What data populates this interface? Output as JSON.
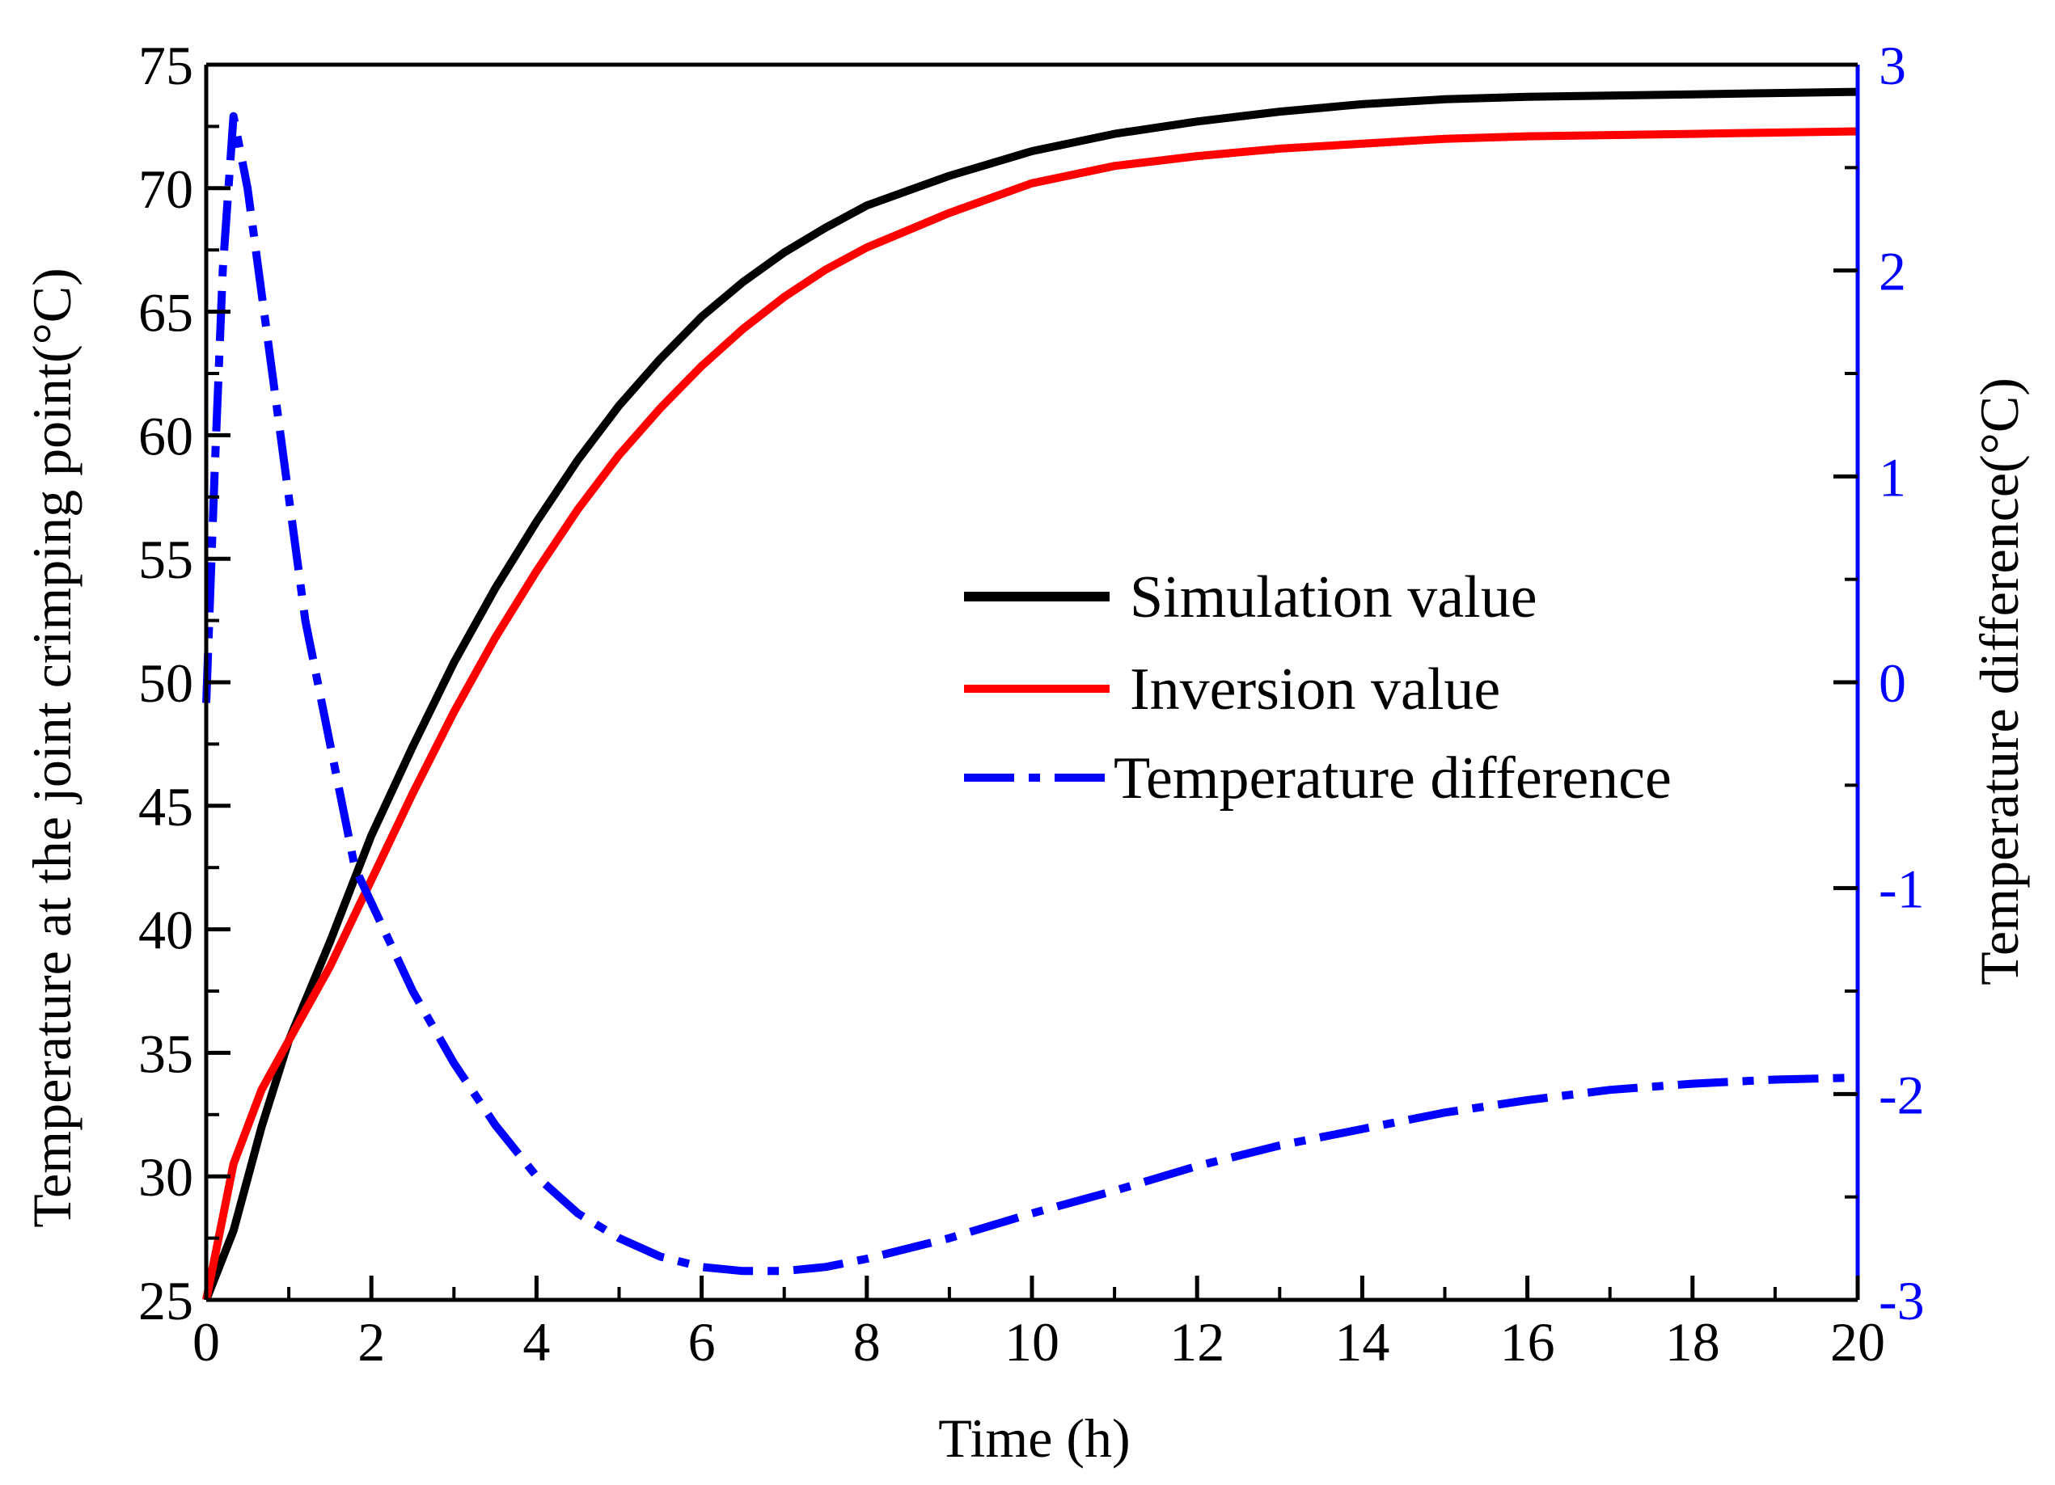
{
  "colors": {
    "simulation": "#000000",
    "inversion": "#ff0000",
    "difference": "#0000ff",
    "axis": "#000000"
  },
  "chart_data": {
    "type": "line",
    "xlabel": "Time (h)",
    "ylabel": "Temperature at the joint crimping point(°C)",
    "y2label": "Temperature difference(°C)",
    "xlim": [
      0,
      20
    ],
    "ylim": [
      25,
      75
    ],
    "y2lim": [
      -3,
      3
    ],
    "xticks": [
      "0",
      "2",
      "4",
      "6",
      "8",
      "10",
      "12",
      "14",
      "16",
      "18",
      "20"
    ],
    "yticks": [
      "25",
      "30",
      "35",
      "40",
      "45",
      "50",
      "55",
      "60",
      "65",
      "70",
      "75"
    ],
    "y2ticks": [
      "-3",
      "-2",
      "-1",
      "0",
      "1",
      "2",
      "3"
    ],
    "grid": false,
    "legend_position": "center-right",
    "series": [
      {
        "name": "Simulation value",
        "axis": "left",
        "style": "solid",
        "x": [
          0,
          0.33,
          0.67,
          1,
          1.5,
          2,
          2.5,
          3,
          3.5,
          4,
          4.5,
          5,
          5.5,
          6,
          6.5,
          7,
          7.5,
          8,
          9,
          10,
          11,
          12,
          13,
          14,
          15,
          16,
          17,
          18,
          19,
          20
        ],
        "y": [
          25,
          27.8,
          32,
          35.5,
          39.5,
          43.8,
          47.4,
          50.8,
          53.8,
          56.5,
          59,
          61.2,
          63.1,
          64.8,
          66.2,
          67.4,
          68.4,
          69.3,
          70.5,
          71.5,
          72.2,
          72.7,
          73.1,
          73.4,
          73.6,
          73.7,
          73.75,
          73.8,
          73.85,
          73.9
        ]
      },
      {
        "name": "Inversion value",
        "axis": "left",
        "style": "solid",
        "x": [
          0,
          0.33,
          0.67,
          1,
          1.5,
          2,
          2.5,
          3,
          3.5,
          4,
          4.5,
          5,
          5.5,
          6,
          6.5,
          7,
          7.5,
          8,
          9,
          10,
          11,
          12,
          13,
          14,
          15,
          16,
          17,
          18,
          19,
          20
        ],
        "y": [
          25,
          30.5,
          33.5,
          35.5,
          38.5,
          42,
          45.5,
          48.8,
          51.8,
          54.5,
          57,
          59.2,
          61.1,
          62.8,
          64.3,
          65.6,
          66.7,
          67.6,
          69.0,
          70.2,
          70.9,
          71.3,
          71.6,
          71.8,
          72.0,
          72.1,
          72.15,
          72.2,
          72.25,
          72.3
        ]
      },
      {
        "name": "Temperature difference",
        "axis": "right",
        "style": "dash-dot",
        "x": [
          0,
          0.1,
          0.2,
          0.33,
          0.5,
          0.8,
          1.2,
          1.8,
          2.5,
          3,
          3.5,
          4,
          4.5,
          5,
          5.5,
          6,
          6.5,
          7,
          7.5,
          8,
          9,
          10,
          11,
          12,
          13,
          14,
          15,
          16,
          17,
          18,
          19,
          20
        ],
        "y": [
          -0.1,
          1.0,
          2.0,
          2.75,
          2.4,
          1.5,
          0.3,
          -0.9,
          -1.5,
          -1.85,
          -2.15,
          -2.4,
          -2.58,
          -2.7,
          -2.79,
          -2.84,
          -2.86,
          -2.86,
          -2.84,
          -2.8,
          -2.7,
          -2.58,
          -2.47,
          -2.35,
          -2.25,
          -2.17,
          -2.09,
          -2.03,
          -1.98,
          -1.95,
          -1.93,
          -1.92
        ]
      }
    ]
  }
}
